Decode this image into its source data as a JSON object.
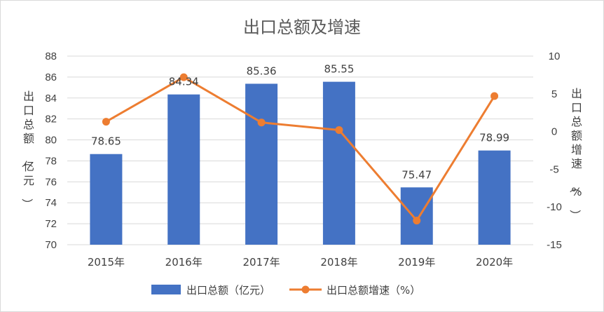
{
  "chart_data": {
    "type": "bar",
    "title": "出口总额及增速",
    "categories": [
      "2015年",
      "2016年",
      "2017年",
      "2018年",
      "2019年",
      "2020年"
    ],
    "series": [
      {
        "name": "出口总额（亿元）",
        "type": "bar",
        "axis": "left",
        "color": "#4472c4",
        "values": [
          78.65,
          84.34,
          85.36,
          85.55,
          75.47,
          78.99
        ],
        "labels": [
          "78.65",
          "84.34",
          "85.36",
          "85.55",
          "75.47",
          "78.99"
        ]
      },
      {
        "name": "出口总额增速（%）",
        "type": "line",
        "axis": "right",
        "color": "#ed7d31",
        "values": [
          1.3,
          7.2,
          1.2,
          0.2,
          -11.8,
          4.7
        ]
      }
    ],
    "y_left": {
      "label": "出口总额（亿元）",
      "ylim": [
        70,
        88
      ],
      "ticks": [
        "70",
        "72",
        "74",
        "76",
        "78",
        "80",
        "82",
        "84",
        "86",
        "88"
      ]
    },
    "y_right": {
      "label": "出口总额增速（%）",
      "ylim": [
        -15,
        10
      ],
      "ticks": [
        "-15",
        "-10",
        "-5",
        "0",
        "5",
        "10"
      ]
    },
    "grid": true,
    "legend_position": "bottom"
  }
}
